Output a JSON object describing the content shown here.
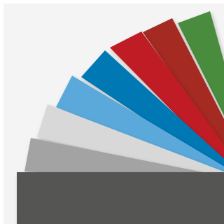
{
  "image": {
    "subject": "fan-of-color-swatch-cards",
    "background_color": "#f4f4f4",
    "shadow_color": "#000000",
    "swatches": [
      {
        "name": "green",
        "color": "#4a8c3c"
      },
      {
        "name": "dark-red",
        "color": "#a42a22"
      },
      {
        "name": "red",
        "color": "#c01f25"
      },
      {
        "name": "blue",
        "color": "#0078b4"
      },
      {
        "name": "light-blue",
        "color": "#5aa9da"
      },
      {
        "name": "light-gray",
        "color": "#d8d8d8"
      },
      {
        "name": "gray",
        "color": "#a3a3a3"
      },
      {
        "name": "charcoal",
        "color": "#555553"
      }
    ]
  }
}
